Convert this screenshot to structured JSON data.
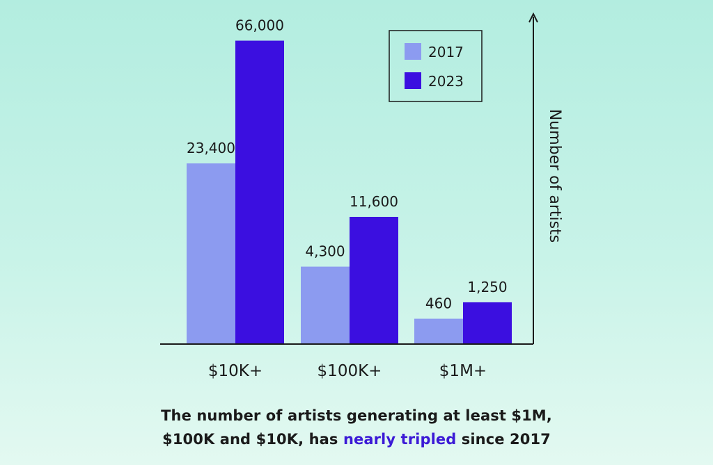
{
  "chart_data": {
    "type": "bar",
    "categories": [
      "$10K+",
      "$100K+",
      "$1M+"
    ],
    "series": [
      {
        "name": "2017",
        "values": [
          23400,
          4300,
          460
        ],
        "labels": [
          "23,400",
          "4,300",
          "460"
        ]
      },
      {
        "name": "2023",
        "values": [
          66000,
          11600,
          1250
        ],
        "labels": [
          "66,000",
          "11,600",
          "1,250"
        ]
      }
    ],
    "ylabel": "Number of artists",
    "y_scale": "non-linear (values not to scale)",
    "legend_position": "top-right",
    "grid": false,
    "colors": {
      "2017": "#8c9bf0",
      "2023": "#3b0fe0"
    }
  },
  "caption": {
    "line1": "The number of artists generating at least $1M,",
    "line2_before": "$100K and $10K, has ",
    "line2_highlight": "nearly tripled",
    "line2_after": " since 2017"
  }
}
